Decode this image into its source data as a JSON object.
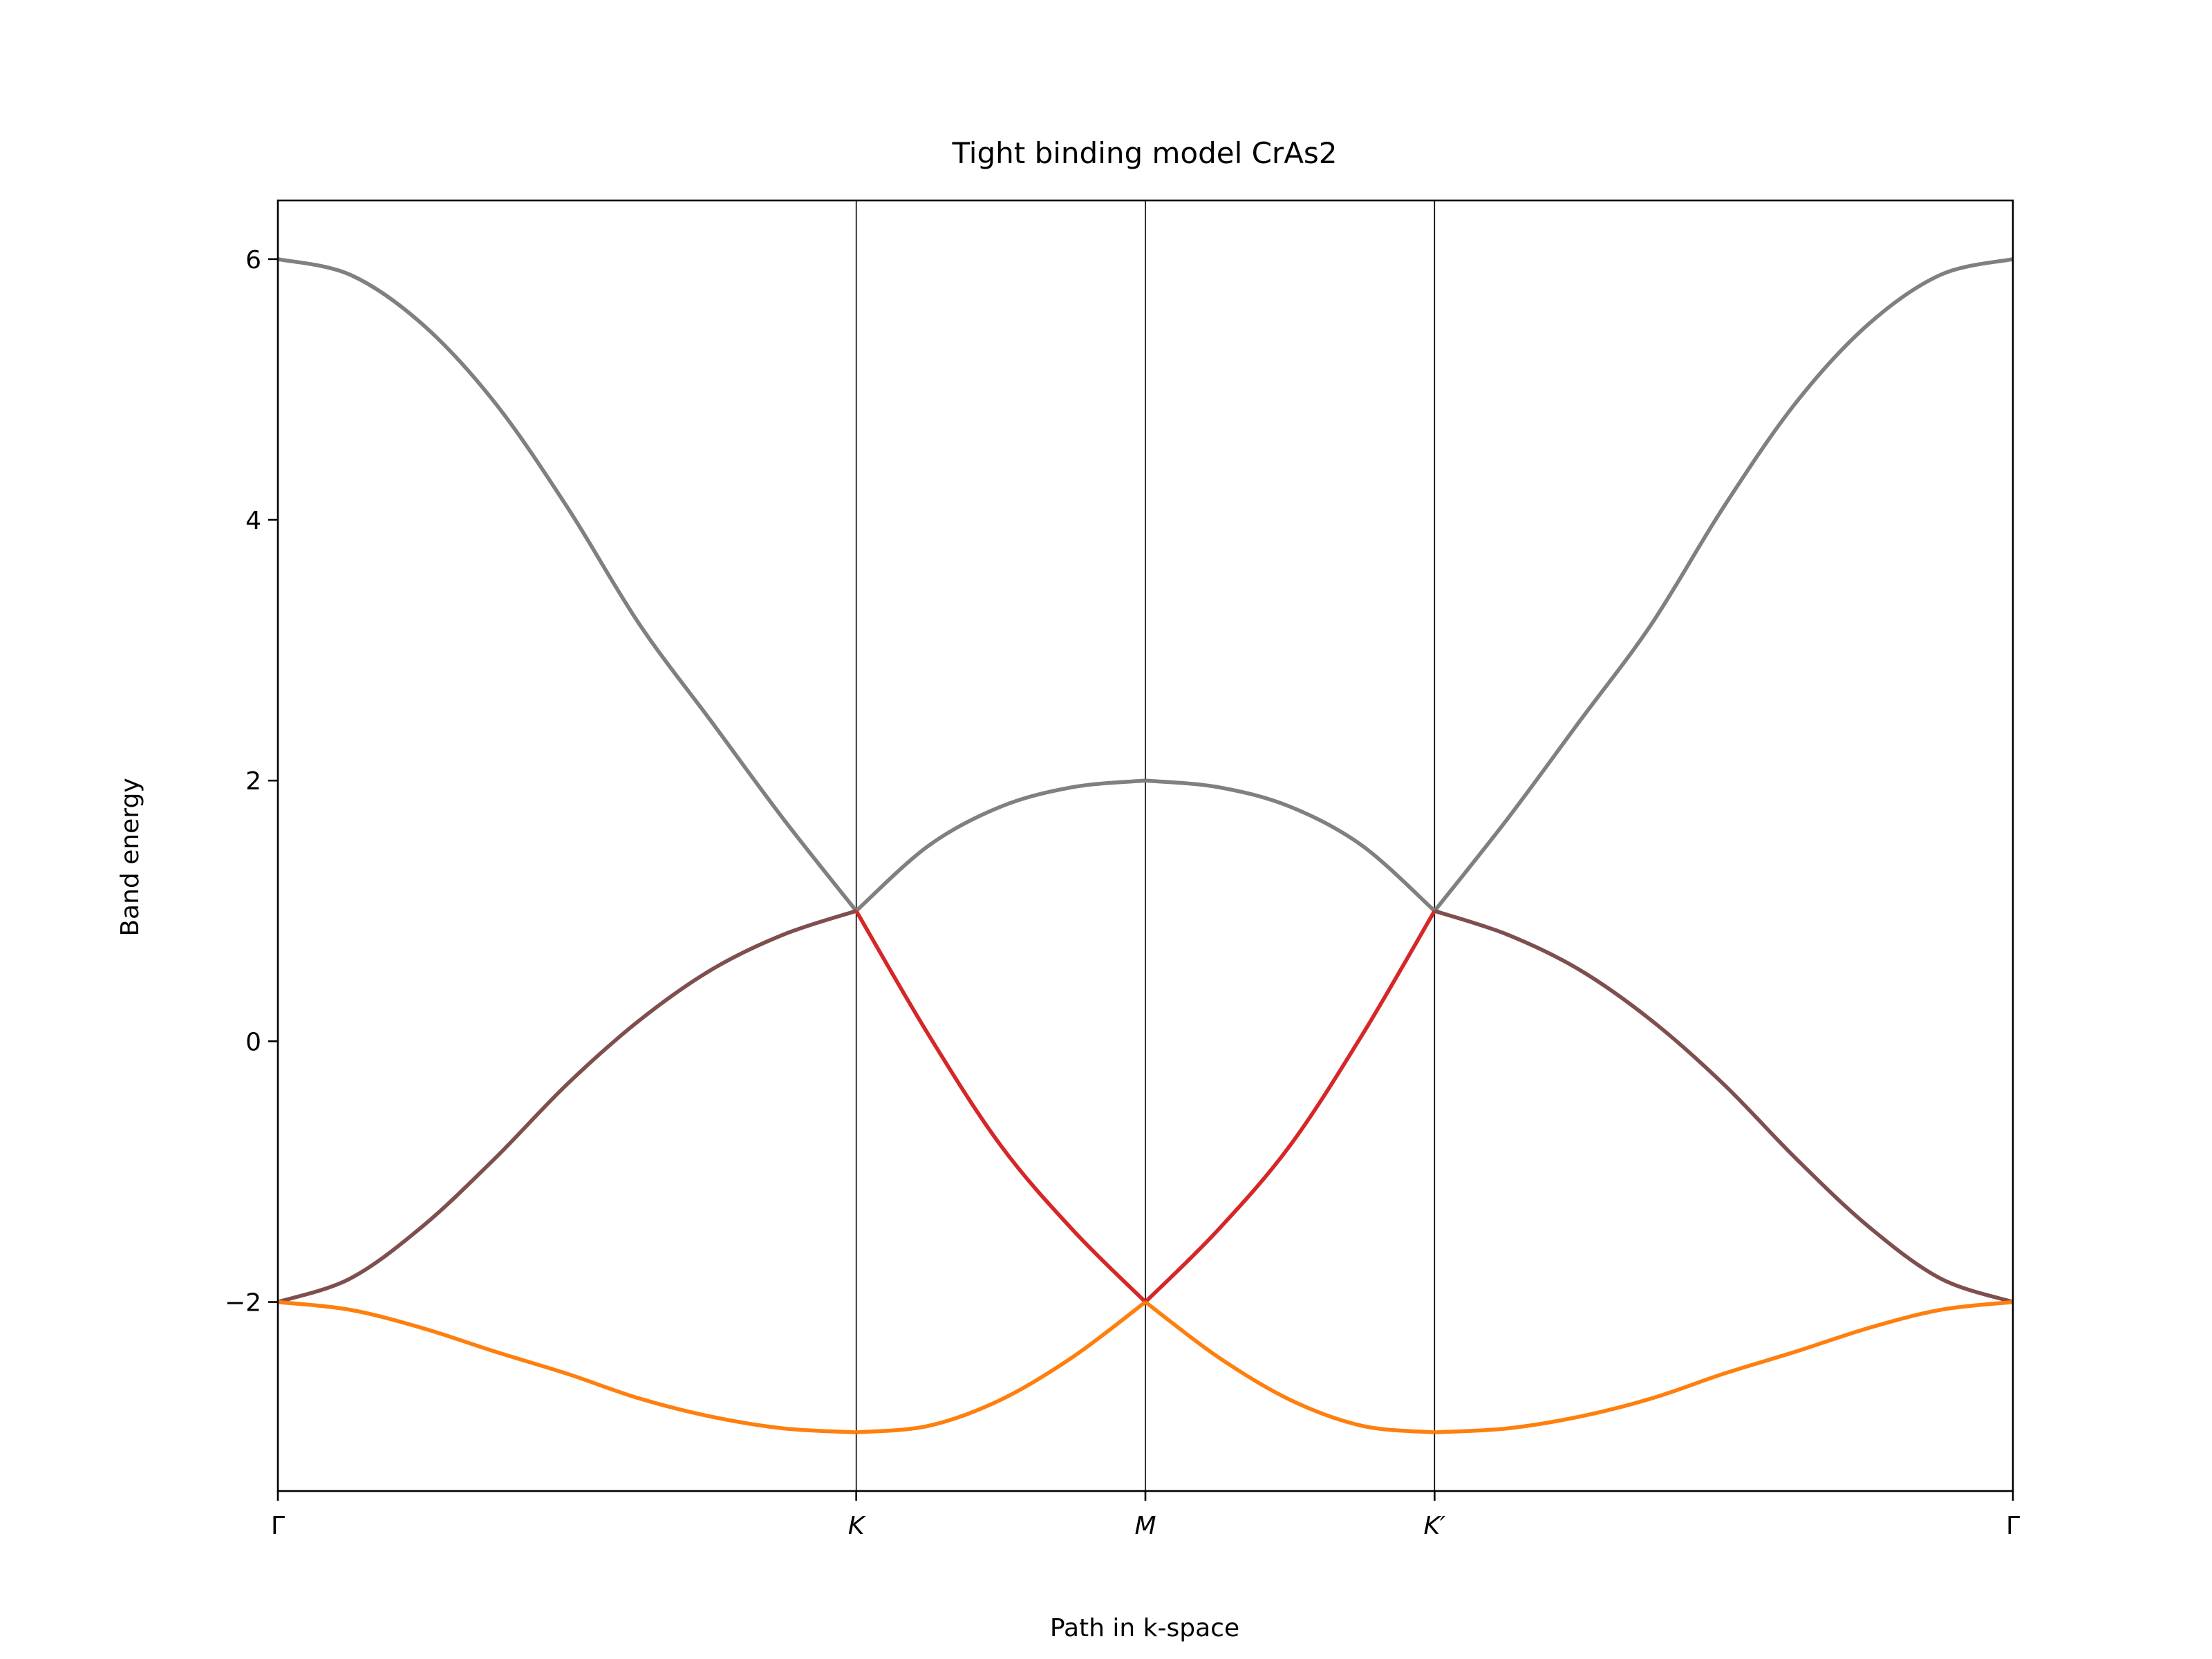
{
  "chart_data": {
    "type": "line",
    "title": "Tight binding model CrAs2",
    "xlabel": "Path in k-space",
    "ylabel": "Band energy",
    "xlim": [
      0,
      6
    ],
    "ylim": [
      -3.45,
      6.45
    ],
    "x_ticks": [
      {
        "x": 0,
        "label": "Γ",
        "italic": false
      },
      {
        "x": 2,
        "label": "K",
        "italic": true
      },
      {
        "x": 3,
        "label": "M",
        "italic": true
      },
      {
        "x": 4,
        "label": "K′",
        "italic": true
      },
      {
        "x": 6,
        "label": "Γ",
        "italic": false
      }
    ],
    "y_ticks": [
      {
        "value": -2,
        "label": "−2"
      },
      {
        "value": 0,
        "label": "0"
      },
      {
        "value": 2,
        "label": "2"
      },
      {
        "value": 4,
        "label": "4"
      },
      {
        "value": 6,
        "label": "6"
      }
    ],
    "vertical_lines": [
      2,
      3,
      4
    ],
    "grid": false,
    "legend": "none",
    "colors": {
      "upper_band": "#808080",
      "middle_band": "#7f4f4f",
      "middle_band_km": "#d62728",
      "lower_band": "#ff7f0e",
      "lower_band_km": "#d62728"
    },
    "series": [
      {
        "segments": [
          {
            "x": [
              0,
              0.25,
              0.5,
              0.75,
              1,
              1.25,
              1.5,
              1.75,
              2
            ],
            "y": [
              6,
              5.88,
              5.5,
              4.9,
              4.1,
              3.2,
              2.45,
              1.7,
              1
            ],
            "color": "#808080"
          },
          {
            "x": [
              2,
              2.25,
              2.5,
              2.75,
              3
            ],
            "y": [
              1,
              1.5,
              1.8,
              1.95,
              2
            ],
            "color": "#808080"
          },
          {
            "x": [
              3,
              3.25,
              3.5,
              3.75,
              4
            ],
            "y": [
              2,
              1.95,
              1.8,
              1.5,
              1
            ],
            "color": "#808080"
          },
          {
            "x": [
              4,
              4.25,
              4.5,
              4.75,
              5,
              5.25,
              5.5,
              5.75,
              6
            ],
            "y": [
              1,
              1.7,
              2.45,
              3.2,
              4.1,
              4.9,
              5.5,
              5.88,
              6
            ],
            "color": "#808080"
          }
        ]
      },
      {
        "segments": [
          {
            "x": [
              0,
              0.25,
              0.5,
              0.75,
              1,
              1.25,
              1.5,
              1.75,
              2
            ],
            "y": [
              -2,
              -1.82,
              -1.42,
              -0.9,
              -0.33,
              0.16,
              0.55,
              0.82,
              1
            ],
            "color": "#7f4f4f"
          },
          {
            "x": [
              2,
              2.25,
              2.5,
              2.75,
              3
            ],
            "y": [
              1,
              0.05,
              -0.8,
              -1.45,
              -2
            ],
            "color": "#d62728"
          },
          {
            "x": [
              3,
              3.25,
              3.5,
              3.75,
              4
            ],
            "y": [
              -2,
              -1.45,
              -0.8,
              0.05,
              1
            ],
            "color": "#d62728"
          },
          {
            "x": [
              4,
              4.25,
              4.5,
              4.75,
              5,
              5.25,
              5.5,
              5.75,
              6
            ],
            "y": [
              1,
              0.82,
              0.55,
              0.16,
              -0.33,
              -0.9,
              -1.42,
              -1.82,
              -2
            ],
            "color": "#7f4f4f"
          }
        ]
      },
      {
        "segments": [
          {
            "x": [
              0,
              0.25,
              0.5,
              0.75,
              1,
              1.25,
              1.5,
              1.75,
              2
            ],
            "y": [
              -2,
              -2.06,
              -2.2,
              -2.38,
              -2.55,
              -2.74,
              -2.88,
              -2.97,
              -3
            ],
            "color": "#ff7f0e"
          },
          {
            "x": [
              2,
              2.25,
              2.5,
              2.75,
              3
            ],
            "y": [
              -3,
              -2.95,
              -2.75,
              -2.42,
              -2
            ],
            "color": "#ff7f0e"
          },
          {
            "x": [
              3,
              3.25,
              3.5,
              3.75,
              4
            ],
            "y": [
              -2,
              -2.42,
              -2.75,
              -2.95,
              -3
            ],
            "color": "#ff7f0e"
          },
          {
            "x": [
              4,
              4.25,
              4.5,
              4.75,
              5,
              5.25,
              5.5,
              5.75,
              6
            ],
            "y": [
              -3,
              -2.97,
              -2.88,
              -2.74,
              -2.55,
              -2.38,
              -2.2,
              -2.06,
              -2
            ],
            "color": "#ff7f0e"
          }
        ]
      }
    ]
  }
}
